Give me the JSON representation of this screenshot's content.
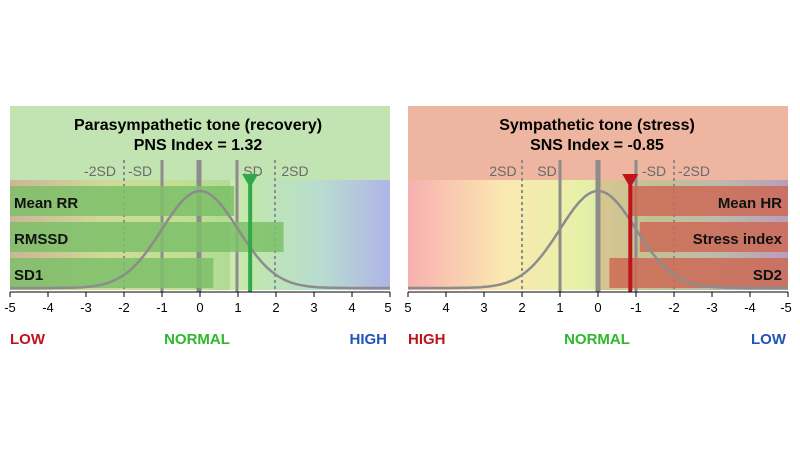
{
  "colors": {
    "pns_header": "#c2e4b2",
    "sns_header": "#eeb5a0",
    "pns_bar": "#7cc069",
    "sns_bar": "#cc6a56",
    "pns_marker": "#33a84a",
    "sns_marker": "#c0141c",
    "curve": "#8c8c8c",
    "low_red": "#c0141c",
    "normal_green": "#2db82d",
    "high_blue": "#2255b5"
  },
  "chart_data": [
    {
      "type": "bar",
      "title": "Parasympathetic tone (recovery)",
      "subtitle": "PNS Index = 1.32",
      "index_value": 1.32,
      "categories": [
        "Mean RR",
        "RMSSD",
        "SD1"
      ],
      "values": [
        0.9,
        2.2,
        0.35
      ],
      "xlim": [
        -5,
        5
      ],
      "axis_reversed": false,
      "xticks": [
        "-5",
        "-4",
        "-3",
        "-2",
        "-1",
        "0",
        "1",
        "2",
        "3",
        "4",
        "5"
      ],
      "sd_labels": [
        "-2SD",
        "-SD",
        "SD",
        "2SD"
      ],
      "zones": [
        "LOW",
        "NORMAL",
        "HIGH"
      ]
    },
    {
      "type": "bar",
      "title": "Sympathetic tone (stress)",
      "subtitle": "SNS Index = -0.85",
      "index_value": -0.85,
      "categories": [
        "Mean HR",
        "Stress index",
        "SD2"
      ],
      "values": [
        -0.85,
        -1.1,
        -0.3
      ],
      "xlim": [
        5,
        -5
      ],
      "axis_reversed": true,
      "xticks": [
        "5",
        "4",
        "3",
        "2",
        "1",
        "0",
        "-1",
        "-2",
        "-3",
        "-4",
        "-5"
      ],
      "sd_labels": [
        "2SD",
        "SD",
        "-SD",
        "-2SD"
      ],
      "zones": [
        "HIGH",
        "NORMAL",
        "LOW"
      ]
    }
  ]
}
